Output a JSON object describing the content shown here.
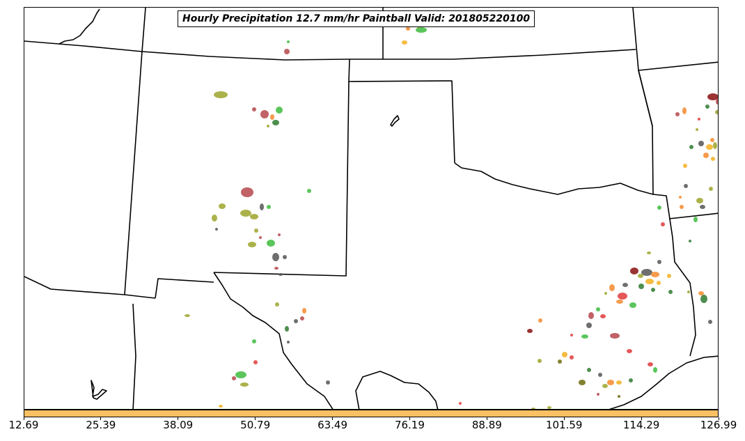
{
  "map": {
    "title": "Hourly Precipitation 12.7 mm/hr Paintball Valid: 201805220100",
    "background_color": "#ffffff",
    "border_color": "#000000"
  },
  "colorbar": {
    "fill_color": "#fbc063",
    "ticks": [
      "12.69",
      "25.39",
      "38.09",
      "50.79",
      "63.49",
      "76.19",
      "88.89",
      "101.59",
      "114.29",
      "126.99"
    ]
  },
  "member_colors": [
    "#b5464b",
    "#3ebb3e",
    "#f48a2d",
    "#9ea52b",
    "#555555",
    "#e23a3a",
    "#2f7a2f",
    "#f3b01e",
    "#8a0f0f",
    "#6b6b0d"
  ]
}
